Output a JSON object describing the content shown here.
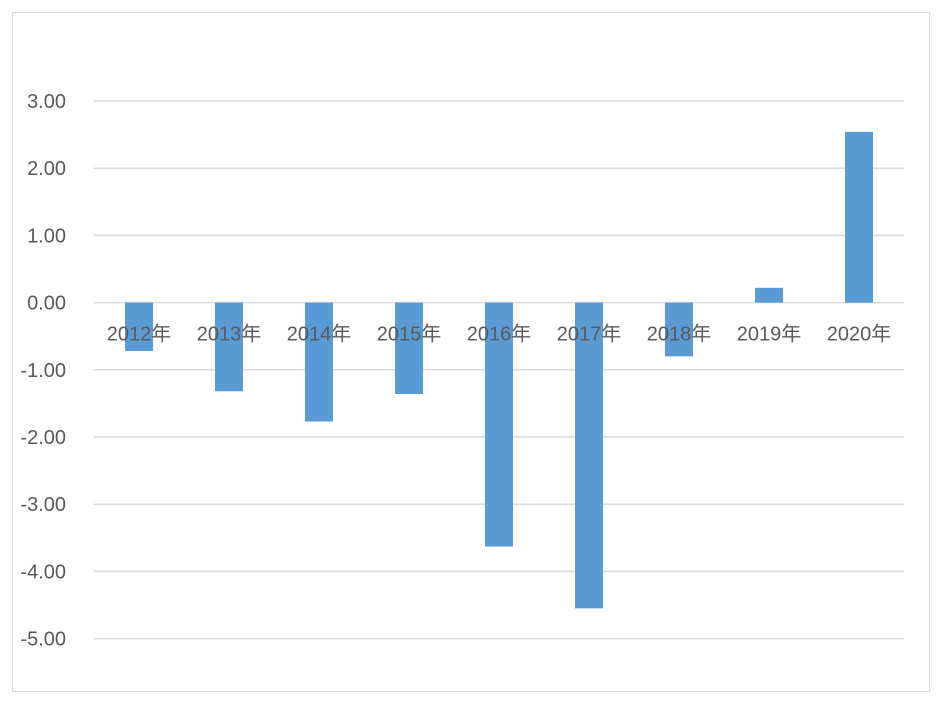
{
  "chart_data": {
    "type": "bar",
    "categories": [
      "2012年",
      "2013年",
      "2014年",
      "2015年",
      "2016年",
      "2017年",
      "2018年",
      "2019年",
      "2020年"
    ],
    "values": [
      -0.72,
      -1.32,
      -1.77,
      -1.36,
      -3.63,
      -4.55,
      -0.8,
      0.22,
      2.54
    ],
    "yticks": [
      "3.00",
      "2.00",
      "1.00",
      "0.00",
      "-1.00",
      "-2.00",
      "-3.00",
      "-4.00",
      "-5.00"
    ],
    "ylim": [
      -5,
      3
    ],
    "title": "",
    "xlabel": "",
    "ylabel": "",
    "grid": true,
    "bar_color": "#5b9bd5",
    "grid_color": "#d9d9d9",
    "label_color": "#595959"
  }
}
